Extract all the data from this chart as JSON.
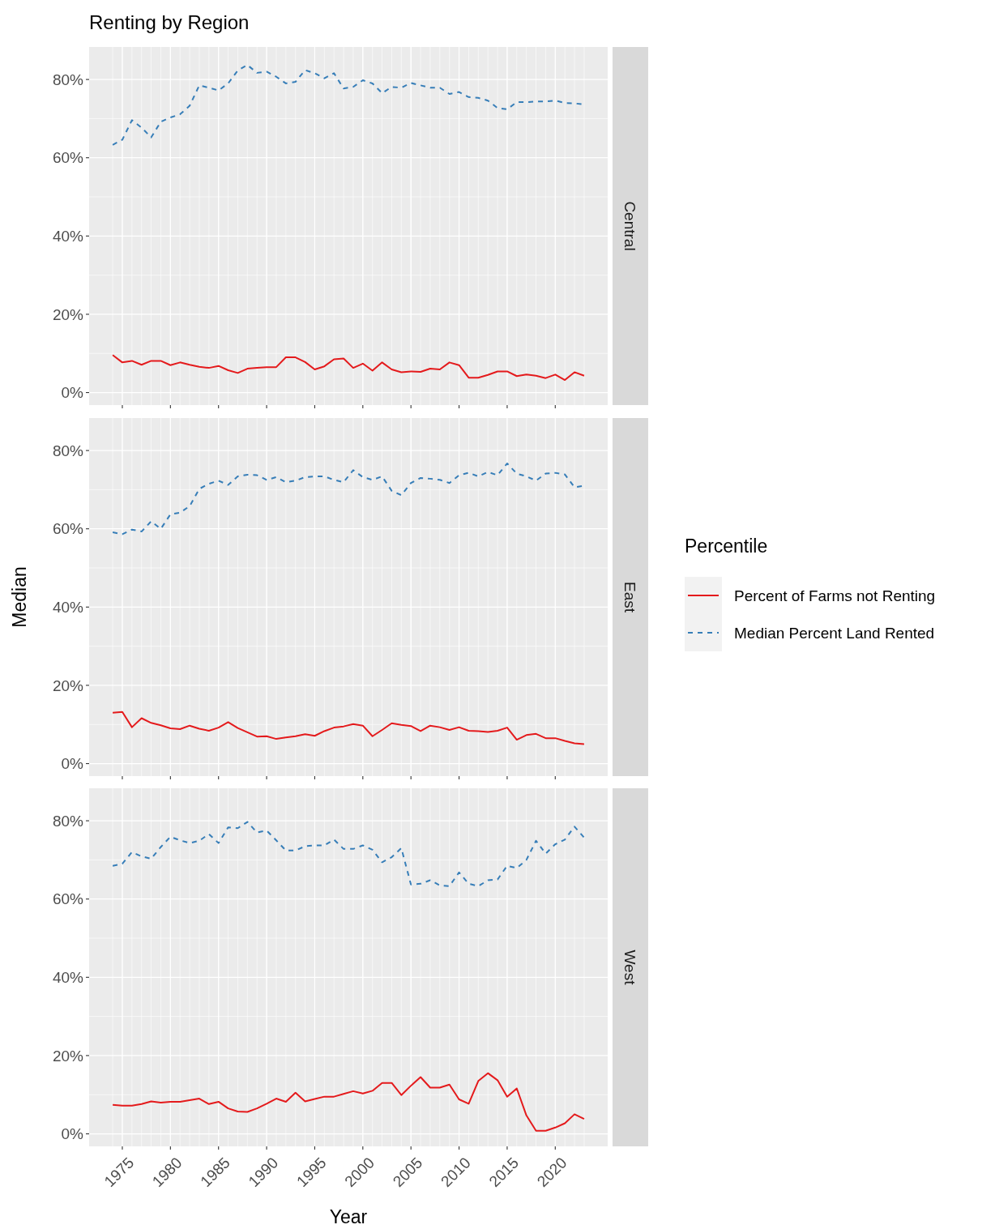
{
  "chart_data": [
    {
      "type": "line",
      "title": "Renting by Region",
      "annotations": [
        "Central"
      ],
      "x": [
        1974,
        1975,
        1976,
        1977,
        1978,
        1979,
        1980,
        1981,
        1982,
        1983,
        1984,
        1985,
        1986,
        1987,
        1988,
        1989,
        1990,
        1991,
        1992,
        1993,
        1994,
        1995,
        1996,
        1997,
        1998,
        1999,
        2000,
        2001,
        2002,
        2003,
        2004,
        2005,
        2006,
        2007,
        2008,
        2009,
        2010,
        2011,
        2012,
        2013,
        2014,
        2015,
        2016,
        2017,
        2018,
        2019,
        2020,
        2021,
        2022,
        2023
      ],
      "xlim": [
        1971.55,
        2025.45
      ],
      "xticks": [
        1975,
        1980,
        1985,
        1990,
        1995,
        2000,
        2005,
        2010,
        2015,
        2020
      ],
      "ylim": [
        -3.2,
        88.3
      ],
      "yticks": [
        {
          "value": 0,
          "label": "0%"
        },
        {
          "value": 20,
          "label": "20%"
        },
        {
          "value": 40,
          "label": "40%"
        },
        {
          "value": 60,
          "label": "60%"
        },
        {
          "value": 80,
          "label": "80%"
        }
      ],
      "grid": true,
      "tick_labels": "y",
      "series": [
        {
          "color": "#e41a1c",
          "line_style": "solid",
          "values": [
            9.6,
            7.7,
            8.1,
            7.1,
            8.1,
            8.1,
            7.0,
            7.7,
            7.1,
            6.6,
            6.3,
            6.8,
            5.7,
            5.0,
            6.1,
            6.3,
            6.5,
            6.5,
            9.0,
            9.0,
            7.8,
            5.9,
            6.7,
            8.5,
            8.7,
            6.3,
            7.4,
            5.6,
            7.7,
            5.9,
            5.2,
            5.4,
            5.3,
            6.1,
            5.9,
            7.7,
            7.0,
            3.8,
            3.8,
            4.5,
            5.4,
            5.4,
            4.2,
            4.6,
            4.3,
            3.7,
            4.6,
            3.2,
            5.2,
            4.3
          ]
        },
        {
          "color": "#377eb8",
          "line_style": "dashed",
          "values": [
            63.3,
            64.6,
            69.6,
            67.7,
            65.2,
            69.2,
            70.3,
            71.1,
            73.3,
            78.5,
            77.9,
            77.2,
            79.0,
            82.3,
            83.7,
            81.7,
            82.0,
            80.7,
            79.0,
            79.4,
            82.4,
            81.6,
            80.3,
            81.6,
            77.7,
            78.1,
            79.8,
            79.0,
            76.5,
            78.1,
            77.9,
            79.1,
            78.5,
            77.9,
            77.9,
            76.3,
            76.8,
            75.5,
            75.3,
            74.6,
            72.7,
            72.4,
            74.2,
            74.2,
            74.4,
            74.4,
            74.6,
            74.0,
            73.9,
            73.6
          ]
        }
      ]
    },
    {
      "type": "line",
      "annotations": [
        "East"
      ],
      "ylabel": "Median",
      "legend_title": "Percentile",
      "legend": "right",
      "x": [
        1974,
        1975,
        1976,
        1977,
        1978,
        1979,
        1980,
        1981,
        1982,
        1983,
        1984,
        1985,
        1986,
        1987,
        1988,
        1989,
        1990,
        1991,
        1992,
        1993,
        1994,
        1995,
        1996,
        1997,
        1998,
        1999,
        2000,
        2001,
        2002,
        2003,
        2004,
        2005,
        2006,
        2007,
        2008,
        2009,
        2010,
        2011,
        2012,
        2013,
        2014,
        2015,
        2016,
        2017,
        2018,
        2019,
        2020,
        2021,
        2022,
        2023
      ],
      "xlim": [
        1971.55,
        2025.45
      ],
      "xticks": [
        1975,
        1980,
        1985,
        1990,
        1995,
        2000,
        2005,
        2010,
        2015,
        2020
      ],
      "ylim": [
        -3.2,
        88.3
      ],
      "yticks": [
        {
          "value": 0,
          "label": "0%"
        },
        {
          "value": 20,
          "label": "20%"
        },
        {
          "value": 40,
          "label": "40%"
        },
        {
          "value": 60,
          "label": "60%"
        },
        {
          "value": 80,
          "label": "80%"
        }
      ],
      "grid": true,
      "tick_labels": "y",
      "series": [
        {
          "name": "Percent of Farms not Renting",
          "color": "#e41a1c",
          "line_style": "solid",
          "values": [
            13.0,
            13.2,
            9.3,
            11.6,
            10.4,
            9.8,
            9.0,
            8.8,
            9.7,
            8.9,
            8.4,
            9.2,
            10.6,
            9.1,
            8.0,
            6.9,
            7.0,
            6.3,
            6.7,
            7.0,
            7.5,
            7.1,
            8.3,
            9.2,
            9.5,
            10.1,
            9.7,
            7.0,
            8.6,
            10.3,
            9.9,
            9.6,
            8.3,
            9.7,
            9.3,
            8.6,
            9.3,
            8.4,
            8.3,
            8.1,
            8.4,
            9.2,
            6.1,
            7.3,
            7.6,
            6.5,
            6.5,
            5.8,
            5.2,
            5.0
          ]
        },
        {
          "name": "Median Percent Land Rented",
          "color": "#377eb8",
          "line_style": "dashed",
          "values": [
            59.1,
            58.6,
            59.8,
            59.3,
            61.9,
            60.0,
            63.7,
            64.1,
            65.8,
            70.2,
            71.5,
            72.3,
            71.2,
            73.4,
            73.8,
            73.7,
            72.5,
            73.2,
            71.9,
            72.3,
            73.2,
            73.4,
            73.4,
            72.5,
            71.9,
            75.0,
            73.2,
            72.5,
            73.4,
            69.7,
            68.6,
            71.7,
            73.0,
            72.8,
            72.5,
            71.7,
            73.7,
            74.3,
            73.4,
            74.5,
            73.7,
            76.7,
            74.1,
            73.4,
            72.3,
            74.1,
            74.3,
            73.9,
            70.6,
            71.0
          ]
        }
      ]
    },
    {
      "type": "line",
      "annotations": [
        "West"
      ],
      "xlabel": "Year",
      "x": [
        1974,
        1975,
        1976,
        1977,
        1978,
        1979,
        1980,
        1981,
        1982,
        1983,
        1984,
        1985,
        1986,
        1987,
        1988,
        1989,
        1990,
        1991,
        1992,
        1993,
        1994,
        1995,
        1996,
        1997,
        1998,
        1999,
        2000,
        2001,
        2002,
        2003,
        2004,
        2005,
        2006,
        2007,
        2008,
        2009,
        2010,
        2011,
        2012,
        2013,
        2014,
        2015,
        2016,
        2017,
        2018,
        2019,
        2020,
        2021,
        2022,
        2023
      ],
      "xlim": [
        1971.55,
        2025.45
      ],
      "xticks": [
        1975,
        1980,
        1985,
        1990,
        1995,
        2000,
        2005,
        2010,
        2015,
        2020
      ],
      "ylim": [
        -3.2,
        88.3
      ],
      "yticks": [
        {
          "value": 0,
          "label": "0%"
        },
        {
          "value": 20,
          "label": "20%"
        },
        {
          "value": 40,
          "label": "40%"
        },
        {
          "value": 60,
          "label": "60%"
        },
        {
          "value": 80,
          "label": "80%"
        }
      ],
      "grid": true,
      "series": [
        {
          "color": "#e41a1c",
          "line_style": "solid",
          "values": [
            7.4,
            7.2,
            7.2,
            7.6,
            8.3,
            8.0,
            8.2,
            8.2,
            8.6,
            9.0,
            7.6,
            8.2,
            6.5,
            5.7,
            5.6,
            6.5,
            7.7,
            9.0,
            8.2,
            10.5,
            8.3,
            8.9,
            9.5,
            9.5,
            10.2,
            10.9,
            10.3,
            11.0,
            13.0,
            13.0,
            9.9,
            12.3,
            14.5,
            11.8,
            11.8,
            12.6,
            8.8,
            7.7,
            13.5,
            15.5,
            13.7,
            9.5,
            11.6,
            4.7,
            0.8,
            0.8,
            1.6,
            2.7,
            5.0,
            3.8
          ]
        },
        {
          "color": "#377eb8",
          "line_style": "dashed",
          "values": [
            68.5,
            69.0,
            72.0,
            70.9,
            70.3,
            73.3,
            75.9,
            75.0,
            74.3,
            74.9,
            76.6,
            74.3,
            78.3,
            78.1,
            79.7,
            77.0,
            77.5,
            75.0,
            72.4,
            72.4,
            73.5,
            73.7,
            73.7,
            75.2,
            72.8,
            72.8,
            73.7,
            72.6,
            69.4,
            70.7,
            73.0,
            63.7,
            63.9,
            64.8,
            63.5,
            63.3,
            66.8,
            63.9,
            63.3,
            64.8,
            65.0,
            68.5,
            67.9,
            70.0,
            74.9,
            71.6,
            74.0,
            75.2,
            78.5,
            75.7
          ]
        }
      ]
    }
  ]
}
